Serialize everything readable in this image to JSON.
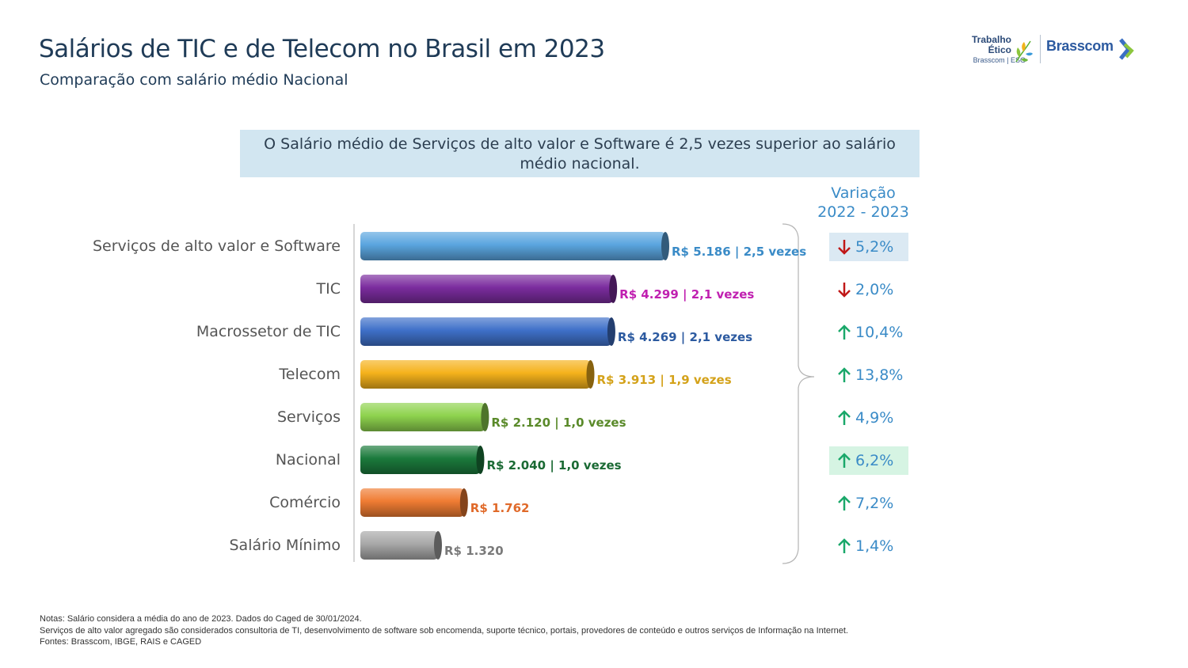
{
  "header": {
    "title": "Salários de TIC e de Telecom no Brasil em 2023",
    "subtitle": "Comparação com salário médio Nacional"
  },
  "logo": {
    "trabalho": "Trabalho",
    "etico": "Ético",
    "esg": "Brasscom | ESG",
    "brasscom": "Brasscom"
  },
  "callout": "O Salário médio de Serviços de alto valor e Software é 2,5 vezes superior ao salário médio nacional.",
  "variation_header": {
    "line1": "Variação",
    "line2": "2022 - 2023"
  },
  "chart_data": {
    "type": "bar",
    "orientation": "horizontal",
    "categories": [
      "Serviços de alto valor e Software",
      "TIC",
      "Macrossetor de TIC",
      "Telecom",
      "Serviços",
      "Nacional",
      "Comércio",
      "Salário Mínimo"
    ],
    "values": [
      5186,
      4299,
      4269,
      3913,
      2120,
      2040,
      1762,
      1320
    ],
    "data_labels": [
      "R$ 5.186 | 2,5 vezes",
      "R$ 4.299 | 2,1 vezes",
      "R$ 4.269 | 2,1 vezes",
      "R$ 3.913 | 1,9 vezes",
      "R$ 2.120 | 1,0 vezes",
      "R$ 2.040 | 1,0 vezes",
      "R$ 1.762",
      "R$ 1.320"
    ],
    "colors": [
      "#5aa5df",
      "#7b2c9e",
      "#3f70c9",
      "#f5b21c",
      "#8ed34e",
      "#1b7a3c",
      "#f07c33",
      "#a8a8a8"
    ],
    "label_colors": [
      "#3a8bc7",
      "#c020b0",
      "#2c5aa0",
      "#d4a21a",
      "#5a8a2a",
      "#1b6a34",
      "#e06a2a",
      "#7a7a7a"
    ],
    "variation": [
      {
        "direction": "down",
        "text": "5,2%",
        "highlight": "#dbe9f3"
      },
      {
        "direction": "down",
        "text": "2,0%",
        "highlight": ""
      },
      {
        "direction": "up",
        "text": "10,4%",
        "highlight": ""
      },
      {
        "direction": "up",
        "text": "13,8%",
        "highlight": ""
      },
      {
        "direction": "up",
        "text": "4,9%",
        "highlight": ""
      },
      {
        "direction": "up",
        "text": "6,2%",
        "highlight": "#d6f4e3"
      },
      {
        "direction": "up",
        "text": "7,2%",
        "highlight": ""
      },
      {
        "direction": "up",
        "text": "1,4%",
        "highlight": ""
      }
    ],
    "arrow_colors": {
      "up": "#1aa86a",
      "down": "#c01818"
    },
    "variation_text_color": "#3a8bc7"
  },
  "notes": {
    "line1": "Notas: Salário considera a média do ano de 2023.  Dados do Caged de 30/01/2024.",
    "line2": "Serviços de alto valor agregado são considerados consultoria de TI, desenvolvimento de software sob encomenda,  suporte técnico, portais, provedores de conteúdo e outros serviços de Informação na Internet.",
    "line3": "Fontes: Brasscom, IBGE, RAIS e CAGED"
  }
}
